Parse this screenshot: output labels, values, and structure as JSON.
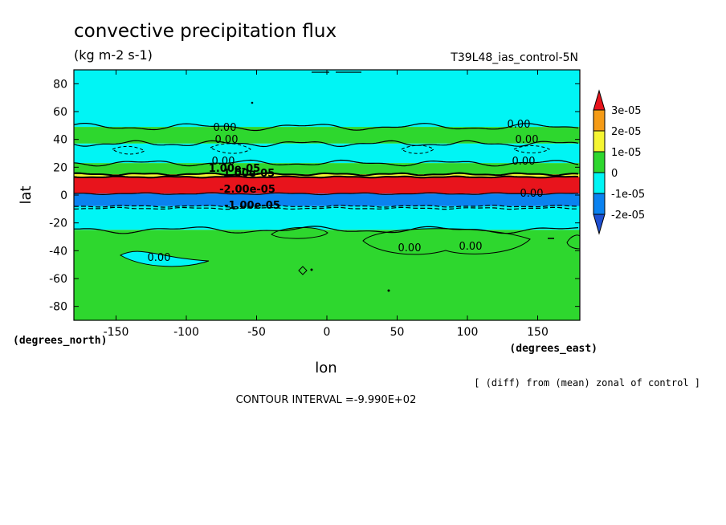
{
  "chart_data": {
    "type": "heatmap",
    "title": "convective precipitation flux",
    "subtitle": "(kg m-2 s-1)",
    "run_label": "T39L48_ias_control-5N",
    "xlabel": "lon",
    "ylabel": "lat",
    "x_units": "(degrees_east)",
    "y_units": "(degrees_north)",
    "xlim": [
      -180,
      180
    ],
    "ylim": [
      -90,
      90
    ],
    "x_ticks": [
      -150,
      -100,
      -50,
      0,
      50,
      100,
      150
    ],
    "y_ticks": [
      80,
      60,
      40,
      20,
      0,
      -20,
      -40,
      -60,
      -80
    ],
    "x_tick_labels": [
      "-150",
      "-100",
      "-50",
      "0",
      "50",
      "100",
      "150"
    ],
    "y_tick_labels": [
      "80",
      "60",
      "40",
      "20",
      "0",
      "-20",
      "-40",
      "-60",
      "-80"
    ],
    "colorbar": {
      "labels": [
        "3e-05",
        "2e-05",
        "1e-05",
        "0",
        "-1e-05",
        "-2e-05"
      ],
      "levels": [
        3e-05,
        2e-05,
        1e-05,
        0,
        -1e-05,
        -2e-05
      ],
      "colors": [
        "#e8141c",
        "#f59b16",
        "#f5f532",
        "#2ed72e",
        "#00f5f5",
        "#0a82f0",
        "#1e50d2"
      ]
    },
    "bands": [
      {
        "lat_from": 90,
        "lat_to": 49,
        "level": "0 to -1e-05",
        "color": "#00f5f5"
      },
      {
        "lat_from": 49,
        "lat_to": 37,
        "level": "0 to 1e-05",
        "color": "#2ed72e"
      },
      {
        "lat_from": 37,
        "lat_to": 23,
        "level": "0 to -1e-05",
        "color": "#00f5f5"
      },
      {
        "lat_from": 23,
        "lat_to": 15,
        "level": "0 to 1e-05",
        "color": "#2ed72e"
      },
      {
        "lat_from": 15,
        "lat_to": 13,
        "level": "1e-05 to 2e-05",
        "color": "#f5f532"
      },
      {
        "lat_from": 13,
        "lat_to": 1,
        "level": "> 3e-05",
        "color": "#e8141c"
      },
      {
        "lat_from": 1,
        "lat_to": -8,
        "level": "-1e-05 to -2e-05",
        "color": "#0a82f0"
      },
      {
        "lat_from": -8,
        "lat_to": -25,
        "level": "0 to -1e-05",
        "color": "#00f5f5"
      },
      {
        "lat_from": -25,
        "lat_to": -90,
        "level": "0 to 1e-05",
        "color": "#2ed72e"
      }
    ],
    "contour_labels": [
      "0.00",
      "0.00",
      "0.00",
      "0.00",
      "0.00",
      "0.00",
      "0.00",
      "0.00",
      "0.00",
      "0.00"
    ],
    "overlap_labels": [
      "1.00e-05",
      "1.00e-05",
      "-2.00e-05",
      "-1.00e-05"
    ],
    "grid": false,
    "legend": "right"
  },
  "annotation": "[ (diff) from (mean) zonal of control ]",
  "contour_interval": "CONTOUR INTERVAL =-9.990E+02"
}
